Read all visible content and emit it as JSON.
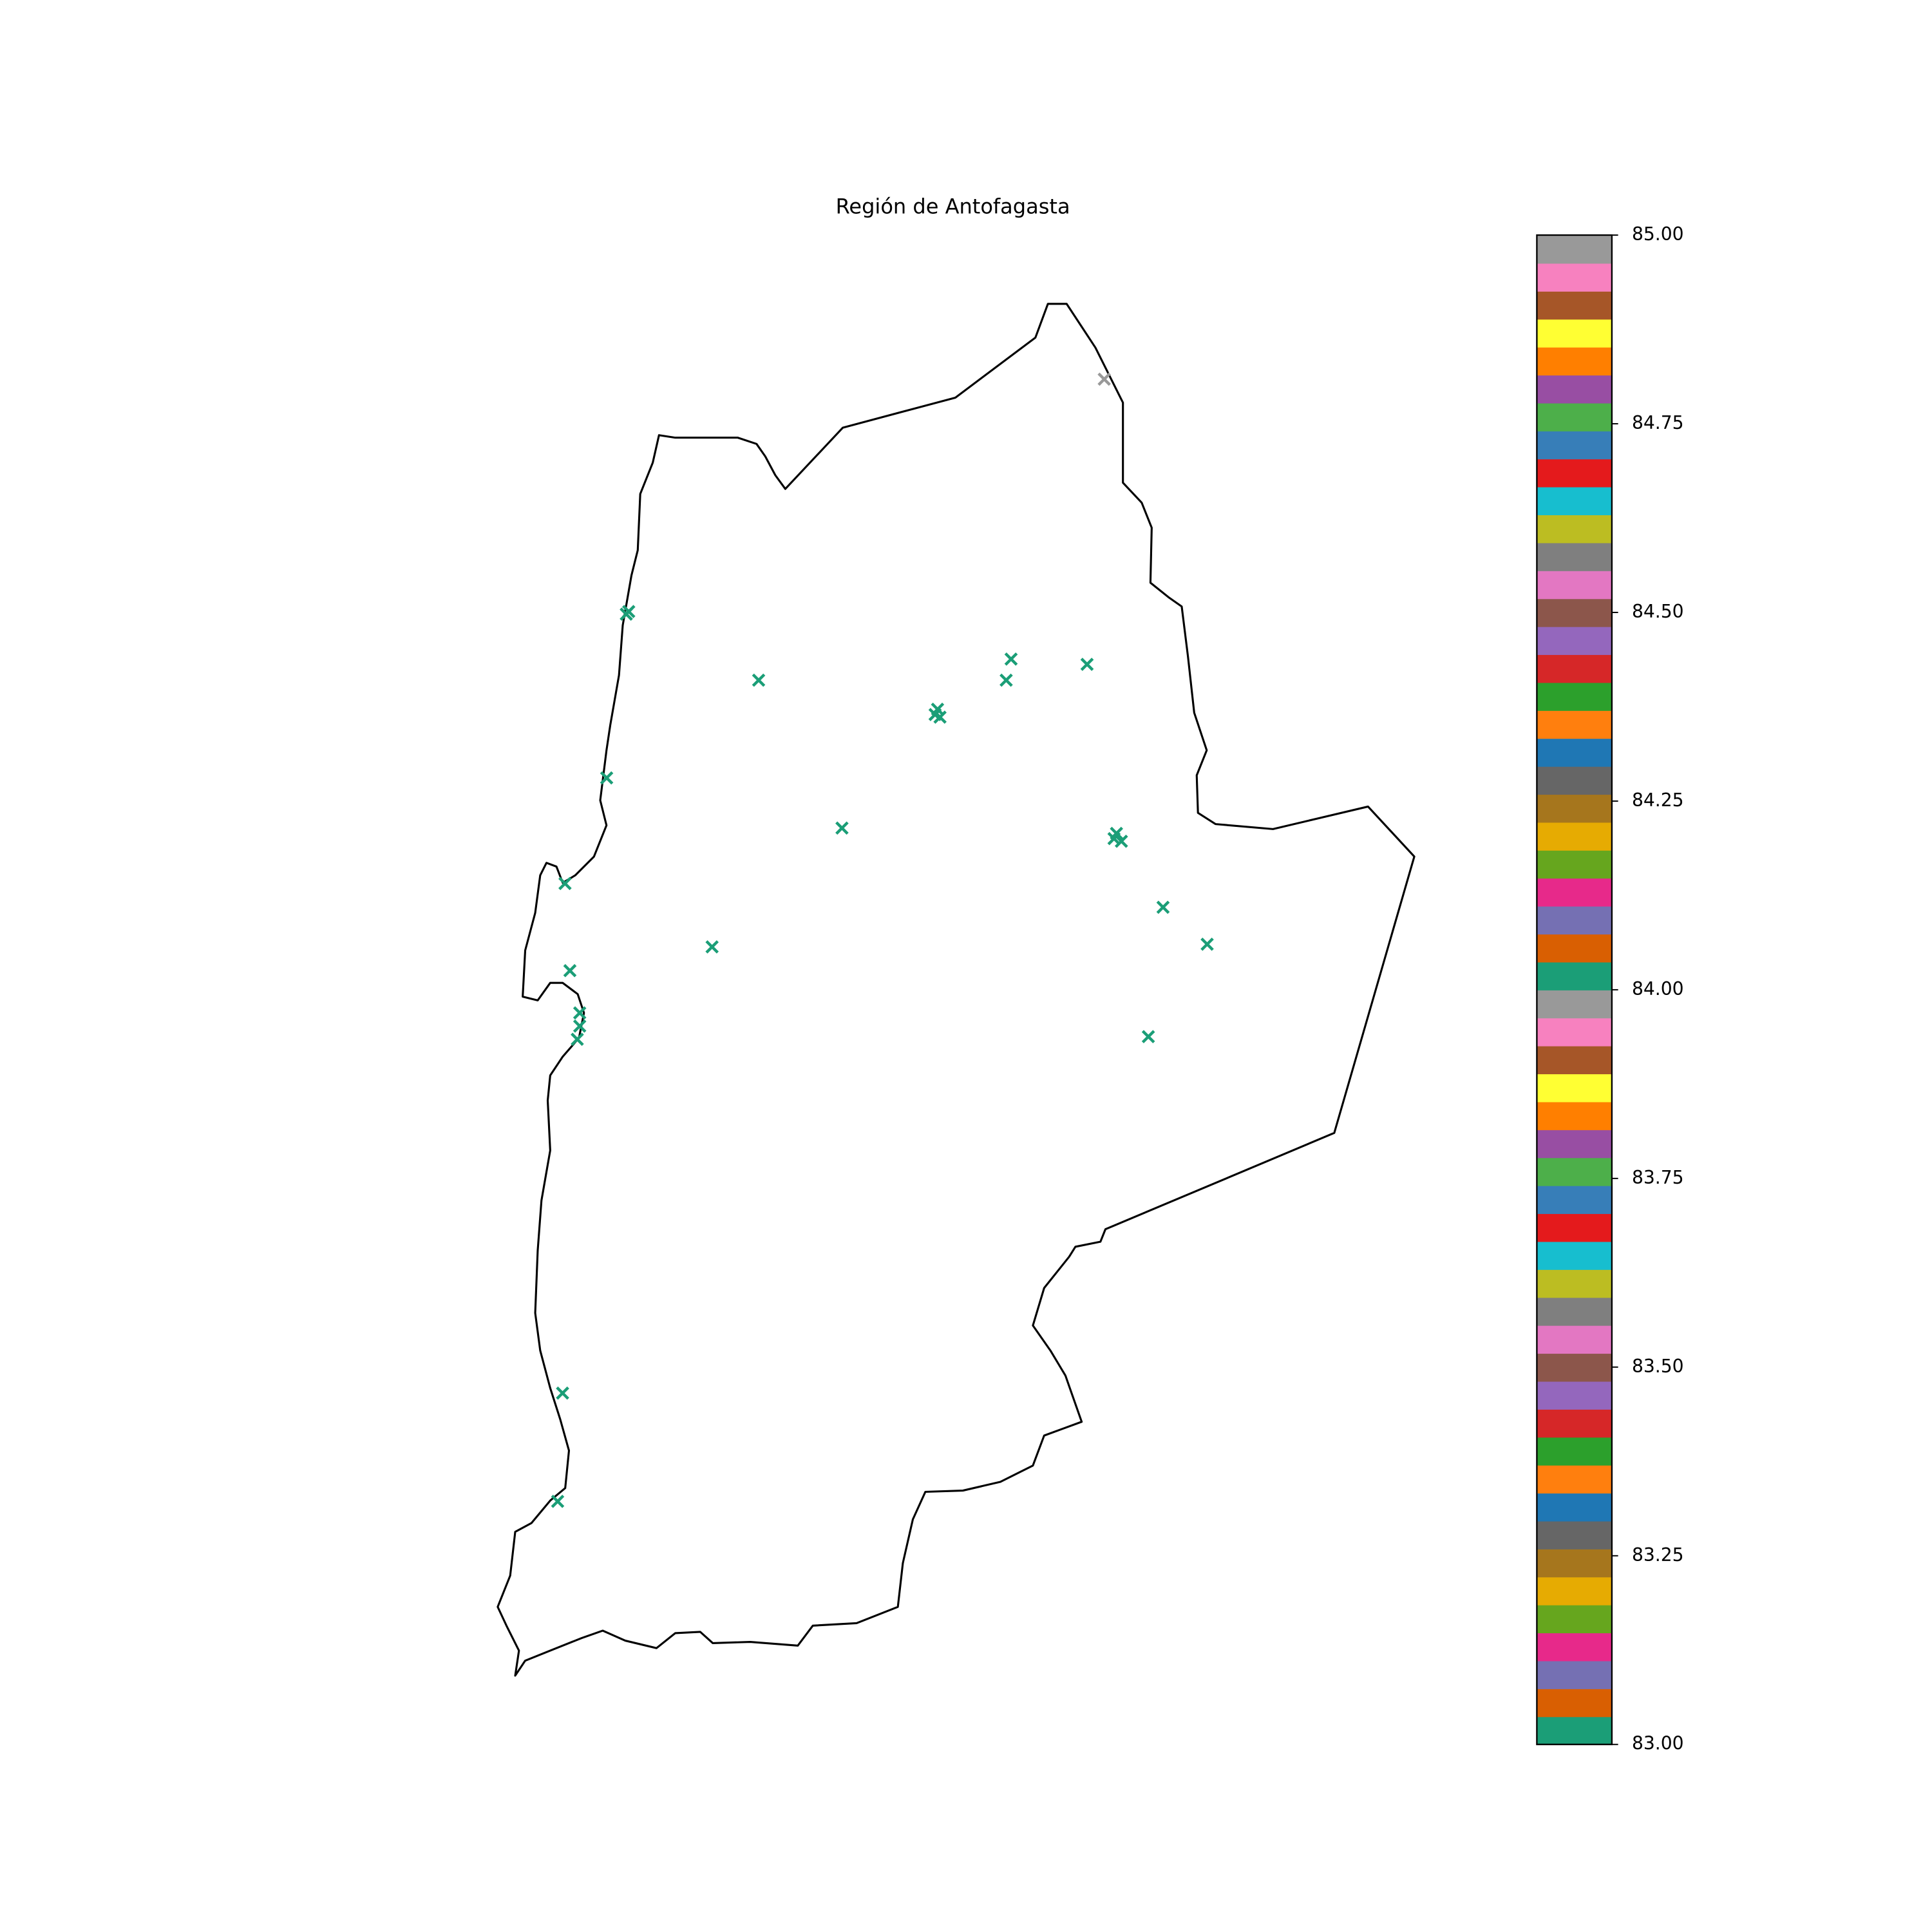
{
  "chart_data": {
    "type": "scatter",
    "title": "Región de Antofagasta",
    "xlim": [
      -70.75,
      -67.0
    ],
    "ylim": [
      -26.1,
      -20.9
    ],
    "x": [
      -68.26,
      -70.21,
      -70.2,
      -69.67,
      -68.64,
      -68.66,
      -68.33,
      -68.94,
      -68.93,
      -68.95,
      -70.29,
      -69.33,
      -68.21,
      -68.19,
      -68.22,
      -70.46,
      -68.02,
      -69.86,
      -67.84,
      -70.44,
      -70.4,
      -70.4,
      -70.41,
      -68.08,
      -70.47,
      -70.49
    ],
    "y": [
      -21.19,
      -22.08,
      -22.07,
      -22.33,
      -22.25,
      -22.33,
      -22.27,
      -22.44,
      -22.47,
      -22.46,
      -22.7,
      -22.89,
      -22.91,
      -22.94,
      -22.93,
      -23.1,
      -23.19,
      -23.34,
      -23.33,
      -23.43,
      -23.59,
      -23.64,
      -23.69,
      -23.68,
      -25.03,
      -25.44
    ],
    "values": [
      85,
      83,
      83,
      83,
      83,
      83,
      83,
      83,
      83,
      83,
      83,
      83,
      83,
      83,
      83,
      83,
      83,
      83,
      83,
      83,
      83,
      83,
      83,
      83,
      83,
      83
    ],
    "marker": "x",
    "clim": [
      83,
      85
    ],
    "colorbar_ticks": [
      {
        "value": 83,
        "label": "83.00"
      },
      {
        "value": 83.25,
        "label": "83.25"
      },
      {
        "value": 83.5,
        "label": "83.50"
      },
      {
        "value": 83.75,
        "label": "83.75"
      },
      {
        "value": 84,
        "label": "84.00"
      },
      {
        "value": 84.25,
        "label": "84.25"
      },
      {
        "value": 84.5,
        "label": "84.50"
      },
      {
        "value": 84.75,
        "label": "84.75"
      },
      {
        "value": 85,
        "label": "85.00"
      }
    ],
    "colormap": [
      "#1b9e77",
      "#d95f02",
      "#7570b3",
      "#e7298a",
      "#66a61e",
      "#e6ab02",
      "#a6761d",
      "#666666",
      "#1f77b4",
      "#ff7f0e",
      "#2ca02c",
      "#d62728",
      "#9467bd",
      "#8c564b",
      "#e377c2",
      "#7f7f7f",
      "#bcbd22",
      "#17becf",
      "#e41a1c",
      "#377eb8",
      "#4daf4a",
      "#984ea3",
      "#ff7f00",
      "#ffff33",
      "#a65628",
      "#f781bf",
      "#999999",
      "#1b9e77",
      "#d95f02",
      "#7570b3",
      "#e7298a",
      "#66a61e",
      "#e6ab02",
      "#a6761d",
      "#666666",
      "#1f77b4",
      "#ff7f0e",
      "#2ca02c",
      "#d62728",
      "#9467bd",
      "#8c564b",
      "#e377c2",
      "#7f7f7f",
      "#bcbd22",
      "#17becf",
      "#e41a1c",
      "#377eb8",
      "#4daf4a",
      "#984ea3",
      "#ff7f00",
      "#ffff33",
      "#a65628",
      "#f781bf",
      "#999999"
    ]
  }
}
